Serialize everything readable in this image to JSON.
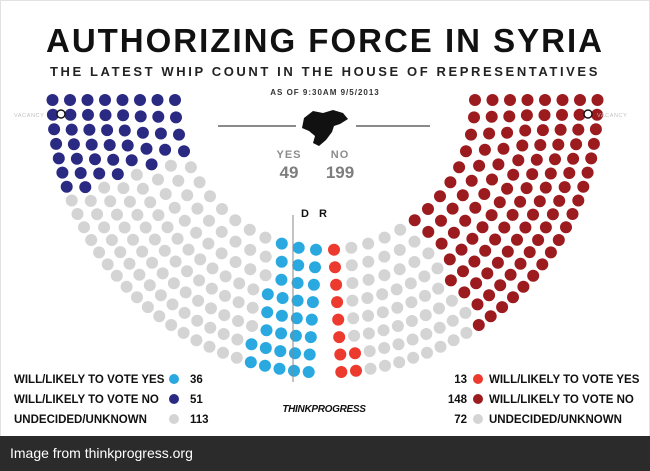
{
  "title": "AUTHORIZING FORCE IN SYRIA",
  "subtitle": "THE LATEST WHIP COUNT IN THE HOUSE OF REPRESENTATIVES",
  "as_of": "AS OF 9:30AM 9/5/2013",
  "vacancy_label": "VACANCY",
  "brand": "THINKPROGRESS",
  "caption": "Image from thinkprogress.org",
  "totals": {
    "yes_label": "YES",
    "yes_value": "49",
    "no_label": "NO",
    "no_value": "199"
  },
  "party_labels": {
    "dem": "D",
    "rep": "R"
  },
  "colors": {
    "dem_yes": "#29a9e0",
    "dem_no": "#2b2a82",
    "rep_yes": "#ed3a2e",
    "rep_no": "#9b1b1e",
    "undecided": "#d4d4d4",
    "total_text": "#8c8c8c"
  },
  "chart_data": {
    "type": "parliament",
    "title": "AUTHORIZING FORCE IN SYRIA",
    "subtitle": "THE LATEST WHIP COUNT IN THE HOUSE OF REPRESENTATIVES",
    "vacancies": 2,
    "parties": [
      {
        "party": "D",
        "side": "left",
        "categories": [
          {
            "label": "WILL/LIKELY TO VOTE YES",
            "value": 36,
            "color": "#29a9e0"
          },
          {
            "label": "WILL/LIKELY TO VOTE NO",
            "value": 51,
            "color": "#2b2a82"
          },
          {
            "label": "UNDECIDED/UNKNOWN",
            "value": 113,
            "color": "#d4d4d4"
          }
        ]
      },
      {
        "party": "R",
        "side": "right",
        "categories": [
          {
            "label": "WILL/LIKELY TO VOTE YES",
            "value": 13,
            "color": "#ed3a2e"
          },
          {
            "label": "WILL/LIKELY TO VOTE NO",
            "value": 148,
            "color": "#9b1b1e"
          },
          {
            "label": "UNDECIDED/UNKNOWN",
            "value": 72,
            "color": "#d4d4d4"
          }
        ]
      }
    ]
  }
}
